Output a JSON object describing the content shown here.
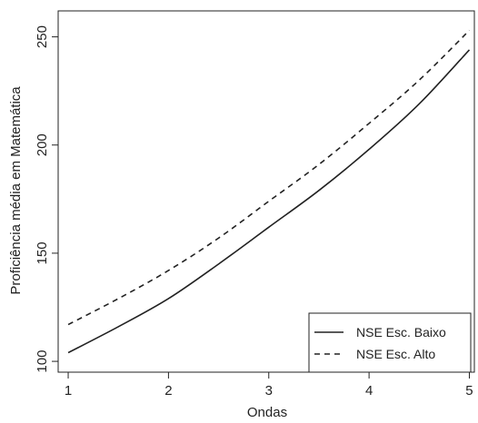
{
  "chart_data": {
    "type": "line",
    "xlabel": "Ondas",
    "ylabel": "Proficiência média em Matemática",
    "xlim": [
      0.9,
      5.05
    ],
    "ylim": [
      95,
      262
    ],
    "x_ticks": [
      "1",
      "2",
      "3",
      "4",
      "5"
    ],
    "y_ticks": [
      "100",
      "150",
      "200",
      "250"
    ],
    "grid": false,
    "legend_position": "bottom-right",
    "series": [
      {
        "name": "NSE Esc. Baixo",
        "line_style": "solid",
        "x": [
          1,
          1.5,
          2,
          2.5,
          3,
          3.5,
          4,
          4.5,
          5
        ],
        "y": [
          104,
          116,
          129,
          145,
          162,
          179,
          198,
          219,
          244
        ]
      },
      {
        "name": "NSE Esc. Alto",
        "line_style": "dashed",
        "x": [
          1,
          1.5,
          2,
          2.5,
          3,
          3.5,
          4,
          4.5,
          5
        ],
        "y": [
          117,
          129,
          142,
          157,
          174,
          191,
          210,
          230,
          253
        ]
      }
    ],
    "colors": {
      "line": "#222222",
      "frame": "#222222"
    }
  }
}
